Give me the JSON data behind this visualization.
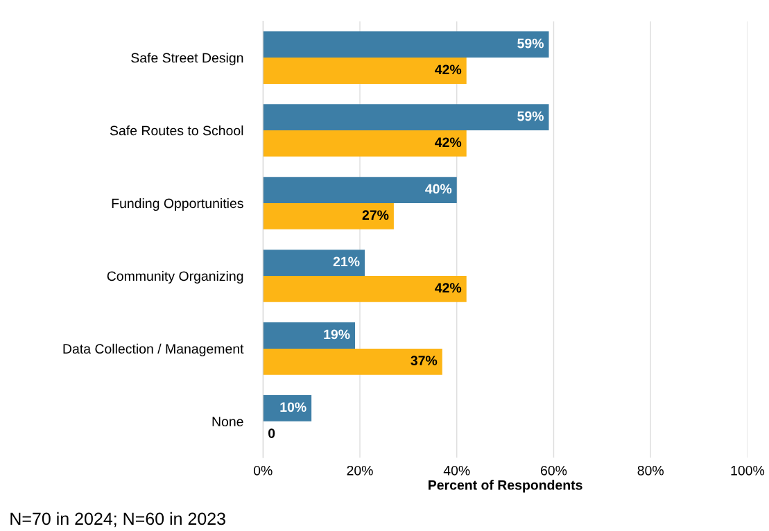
{
  "chart_data": {
    "type": "bar",
    "orientation": "horizontal",
    "categories": [
      "Safe Street Design",
      "Safe Routes to School",
      "Funding Opportunities",
      "Community Organizing",
      "Data Collection / Management",
      "None"
    ],
    "series": [
      {
        "color": "#3d7ea6",
        "values": [
          59,
          59,
          40,
          21,
          19,
          10
        ],
        "value_labels": [
          "59%",
          "59%",
          "40%",
          "21%",
          "19%",
          "10%"
        ]
      },
      {
        "color": "#fdb515",
        "values": [
          42,
          42,
          27,
          42,
          37,
          0
        ],
        "value_labels": [
          "42%",
          "42%",
          "27%",
          "42%",
          "37%",
          "0"
        ]
      }
    ],
    "xlabel": "Percent of Respondents",
    "xlim": [
      0,
      100
    ],
    "xticks": [
      {
        "value": 0,
        "label": "0%"
      },
      {
        "value": 20,
        "label": "20%"
      },
      {
        "value": 40,
        "label": "40%"
      },
      {
        "value": 60,
        "label": "60%"
      },
      {
        "value": 80,
        "label": "80%"
      },
      {
        "value": 100,
        "label": "100%"
      }
    ],
    "grid": "x",
    "legend": false,
    "annotations": [
      "N=70 in 2024; N=60 in 2023"
    ]
  }
}
